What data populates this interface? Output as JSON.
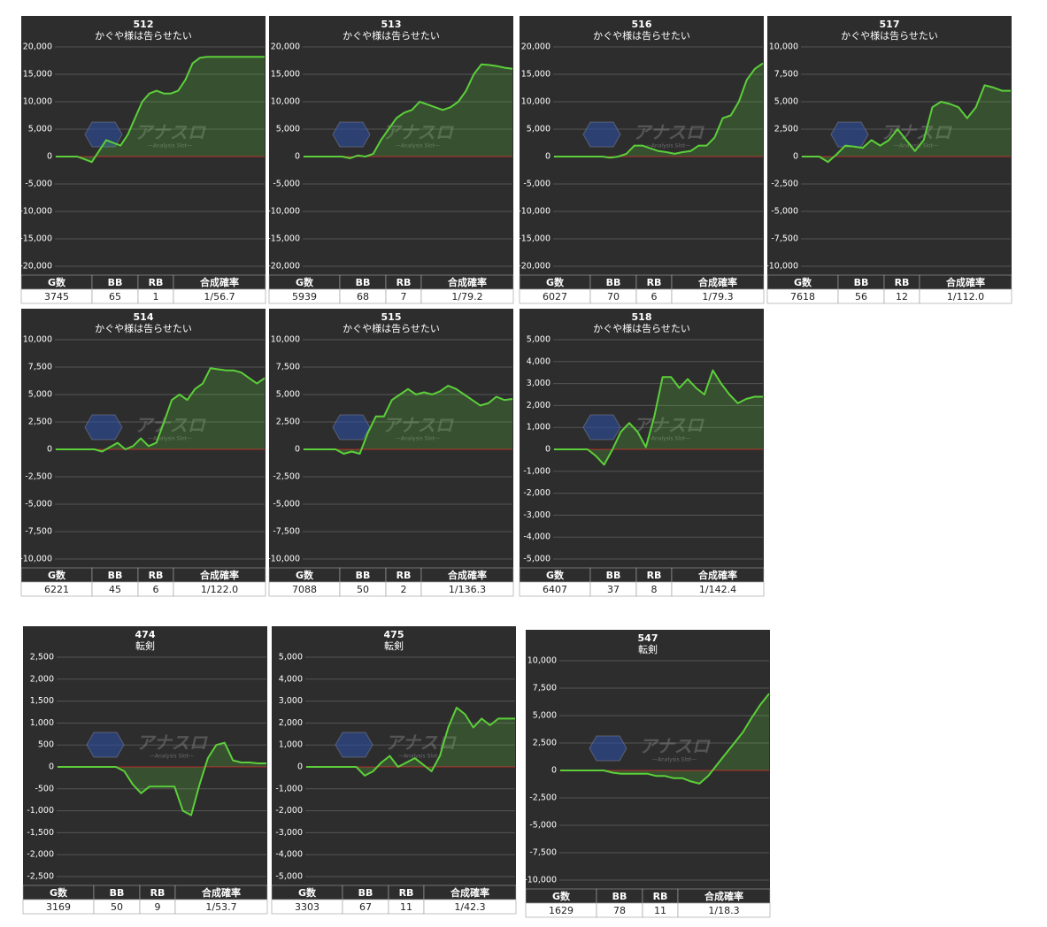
{
  "watermark": {
    "logo": "アナスロ",
    "sub": "—Analysis Slot—"
  },
  "table_columns": [
    "G数",
    "BB",
    "RB",
    "合成確率"
  ],
  "chart_data": [
    {
      "type": "line",
      "title": "512",
      "subtitle": "かぐや様は告らせたい",
      "color": "#5ccf3a",
      "ylim": [
        -20000,
        20000
      ],
      "yticks": [
        {
          "value": 20000,
          "label": "20,000"
        },
        {
          "value": 15000,
          "label": "15,000"
        },
        {
          "value": 10000,
          "label": "10,000"
        },
        {
          "value": 5000,
          "label": "5,000"
        },
        0,
        {
          "value": -5000,
          "label": "-5,000"
        },
        {
          "value": -10000,
          "label": "-10,000"
        },
        {
          "value": -15000,
          "label": "-15,000"
        },
        {
          "value": -20000,
          "label": "-20,000"
        }
      ],
      "values": [
        0,
        0,
        0,
        0,
        -500,
        -1000,
        1000,
        3000,
        2500,
        2000,
        4000,
        7000,
        10000,
        11500,
        12000,
        11500,
        11500,
        12000,
        14000,
        17000,
        18000,
        18200,
        18200,
        18200,
        18200,
        18200,
        18200,
        18200,
        18200,
        18200
      ],
      "table": [
        3745,
        65,
        1,
        "1/56.7"
      ]
    },
    {
      "type": "line",
      "title": "513",
      "subtitle": "かぐや様は告らせたい",
      "color": "#5ccf3a",
      "ylim": [
        -20000,
        20000
      ],
      "yticks": [
        {
          "value": 20000,
          "label": "20,000"
        },
        {
          "value": 15000,
          "label": "15,000"
        },
        {
          "value": 10000,
          "label": "10,000"
        },
        {
          "value": 5000,
          "label": "5,000"
        },
        0,
        {
          "value": -5000,
          "label": "-5,000"
        },
        {
          "value": -10000,
          "label": "-10,000"
        },
        {
          "value": -15000,
          "label": "-15,000"
        },
        {
          "value": -20000,
          "label": "-20,000"
        }
      ],
      "values": [
        0,
        0,
        0,
        0,
        0,
        0,
        -300,
        200,
        0,
        500,
        3000,
        5000,
        7000,
        8000,
        8500,
        10000,
        9500,
        9000,
        8500,
        9000,
        10000,
        12000,
        15000,
        16800,
        16700,
        16500,
        16200,
        16000
      ],
      "table": [
        5939,
        68,
        7,
        "1/79.2"
      ]
    },
    {
      "type": "line",
      "title": "516",
      "subtitle": "かぐや様は告らせたい",
      "color": "#5ccf3a",
      "ylim": [
        -20000,
        20000
      ],
      "yticks": [
        {
          "value": 20000,
          "label": "20,000"
        },
        {
          "value": 15000,
          "label": "15,000"
        },
        {
          "value": 10000,
          "label": "10,000"
        },
        {
          "value": 5000,
          "label": "5,000"
        },
        0,
        {
          "value": -5000,
          "label": "-5,000"
        },
        {
          "value": -10000,
          "label": "-10,000"
        },
        {
          "value": -15000,
          "label": "-15,000"
        },
        {
          "value": -20000,
          "label": "-20,000"
        }
      ],
      "values": [
        0,
        0,
        0,
        0,
        0,
        0,
        0,
        -200,
        0,
        500,
        2000,
        2000,
        1500,
        1000,
        800,
        500,
        800,
        1000,
        2000,
        2000,
        3500,
        7000,
        7500,
        10000,
        14000,
        16000,
        17000
      ],
      "table": [
        6027,
        70,
        6,
        "1/79.3"
      ]
    },
    {
      "type": "line",
      "title": "517",
      "subtitle": "かぐや様は告らせたい",
      "color": "#5ccf3a",
      "ylim": [
        -10000,
        10000
      ],
      "yticks": [
        {
          "value": 10000,
          "label": "10,000"
        },
        {
          "value": 7500,
          "label": "7,500"
        },
        {
          "value": 5000,
          "label": "5,000"
        },
        {
          "value": 2500,
          "label": "2,500"
        },
        0,
        {
          "value": -2500,
          "label": "-2,500"
        },
        {
          "value": -5000,
          "label": "-5,000"
        },
        {
          "value": -7500,
          "label": "-7,500"
        },
        {
          "value": -10000,
          "label": "-10,000"
        }
      ],
      "values": [
        0,
        0,
        0,
        -500,
        200,
        1000,
        900,
        800,
        1500,
        1000,
        1500,
        2500,
        1500,
        500,
        1500,
        4500,
        5000,
        4800,
        4500,
        3500,
        4500,
        6500,
        6300,
        6000,
        6000
      ],
      "table": [
        7618,
        56,
        12,
        "1/112.0"
      ]
    },
    {
      "type": "line",
      "title": "514",
      "subtitle": "かぐや様は告らせたい",
      "color": "#5ccf3a",
      "ylim": [
        -10000,
        10000
      ],
      "yticks": [
        {
          "value": 10000,
          "label": "10,000"
        },
        {
          "value": 7500,
          "label": "7,500"
        },
        {
          "value": 5000,
          "label": "5,000"
        },
        {
          "value": 2500,
          "label": "2,500"
        },
        0,
        {
          "value": -2500,
          "label": "-2,500"
        },
        {
          "value": -5000,
          "label": "-5,000"
        },
        {
          "value": -7500,
          "label": "-7,500"
        },
        {
          "value": -10000,
          "label": "-10,000"
        }
      ],
      "values": [
        0,
        0,
        0,
        0,
        0,
        0,
        -200,
        200,
        600,
        0,
        300,
        1000,
        300,
        600,
        2500,
        4500,
        5000,
        4500,
        5500,
        6000,
        7400,
        7300,
        7200,
        7200,
        7000,
        6500,
        6000,
        6500
      ],
      "table": [
        6221,
        45,
        6,
        "1/122.0"
      ]
    },
    {
      "type": "line",
      "title": "515",
      "subtitle": "かぐや様は告らせたい",
      "color": "#5ccf3a",
      "ylim": [
        -10000,
        10000
      ],
      "yticks": [
        {
          "value": 10000,
          "label": "10,000"
        },
        {
          "value": 7500,
          "label": "7,500"
        },
        {
          "value": 5000,
          "label": "5,000"
        },
        {
          "value": 2500,
          "label": "2,500"
        },
        0,
        {
          "value": -2500,
          "label": "-2,500"
        },
        {
          "value": -5000,
          "label": "-5,000"
        },
        {
          "value": -7500,
          "label": "-7,500"
        },
        {
          "value": -10000,
          "label": "-10,000"
        }
      ],
      "values": [
        0,
        0,
        0,
        0,
        0,
        -400,
        -200,
        -400,
        1500,
        3000,
        3000,
        4500,
        5000,
        5500,
        5000,
        5200,
        5000,
        5300,
        5800,
        5500,
        5000,
        4500,
        4000,
        4200,
        4800,
        4500,
        4600
      ],
      "table": [
        7088,
        50,
        2,
        "1/136.3"
      ]
    },
    {
      "type": "line",
      "title": "518",
      "subtitle": "かぐや様は告らせたい",
      "color": "#5ccf3a",
      "ylim": [
        -5000,
        5000
      ],
      "yticks": [
        {
          "value": 5000,
          "label": "5,000"
        },
        {
          "value": 4000,
          "label": "4,000"
        },
        {
          "value": 3000,
          "label": "3,000"
        },
        {
          "value": 2000,
          "label": "2,000"
        },
        {
          "value": 1000,
          "label": "1,000"
        },
        0,
        {
          "value": -1000,
          "label": "-1,000"
        },
        {
          "value": -2000,
          "label": "-2,000"
        },
        {
          "value": -3000,
          "label": "-3,000"
        },
        {
          "value": -4000,
          "label": "-4,000"
        },
        {
          "value": -5000,
          "label": "-5,000"
        }
      ],
      "values": [
        0,
        0,
        0,
        0,
        0,
        -300,
        -700,
        0,
        800,
        1200,
        800,
        100,
        1500,
        3300,
        3300,
        2800,
        3200,
        2800,
        2500,
        3600,
        3000,
        2500,
        2100,
        2300,
        2400,
        2400
      ],
      "table": [
        6407,
        37,
        8,
        "1/142.4"
      ]
    },
    {
      "type": "line",
      "title": "474",
      "subtitle": "転剣",
      "color": "#5ccf3a",
      "ylim": [
        -2500,
        2500
      ],
      "yticks": [
        {
          "value": 2500,
          "label": "2,500"
        },
        {
          "value": 2000,
          "label": "2,000"
        },
        {
          "value": 1500,
          "label": "1,500"
        },
        {
          "value": 1000,
          "label": "1,000"
        },
        500,
        0,
        -500,
        {
          "value": -1000,
          "label": "-1,000"
        },
        {
          "value": -1500,
          "label": "-1,500"
        },
        {
          "value": -2000,
          "label": "-2,000"
        },
        {
          "value": -2500,
          "label": "-2,500"
        }
      ],
      "values": [
        0,
        0,
        0,
        0,
        0,
        0,
        0,
        0,
        -100,
        -400,
        -600,
        -450,
        -450,
        -450,
        -450,
        -1000,
        -1100,
        -400,
        200,
        500,
        550,
        150,
        100,
        100,
        80,
        80
      ],
      "table": [
        3169,
        50,
        9,
        "1/53.7"
      ]
    },
    {
      "type": "line",
      "title": "475",
      "subtitle": "転剣",
      "color": "#5ccf3a",
      "ylim": [
        -5000,
        5000
      ],
      "yticks": [
        {
          "value": 5000,
          "label": "5,000"
        },
        {
          "value": 4000,
          "label": "4,000"
        },
        {
          "value": 3000,
          "label": "3,000"
        },
        {
          "value": 2000,
          "label": "2,000"
        },
        {
          "value": 1000,
          "label": "1,000"
        },
        0,
        {
          "value": -1000,
          "label": "-1,000"
        },
        {
          "value": -2000,
          "label": "-2,000"
        },
        {
          "value": -3000,
          "label": "-3,000"
        },
        {
          "value": -4000,
          "label": "-4,000"
        },
        {
          "value": -5000,
          "label": "-5,000"
        }
      ],
      "values": [
        0,
        0,
        0,
        0,
        0,
        0,
        0,
        -400,
        -200,
        200,
        500,
        0,
        200,
        400,
        100,
        -200,
        500,
        1800,
        2700,
        2400,
        1800,
        2200,
        1900,
        2200,
        2200,
        2200
      ],
      "table": [
        3303,
        67,
        11,
        "1/42.3"
      ]
    },
    {
      "type": "line",
      "title": "547",
      "subtitle": "転剣",
      "color": "#5ccf3a",
      "ylim": [
        -10000,
        10000
      ],
      "yticks": [
        {
          "value": 10000,
          "label": "10,000"
        },
        {
          "value": 7500,
          "label": "7,500"
        },
        {
          "value": 5000,
          "label": "5,000"
        },
        {
          "value": 2500,
          "label": "2,500"
        },
        0,
        {
          "value": -2500,
          "label": "-2,500"
        },
        {
          "value": -5000,
          "label": "-5,000"
        },
        {
          "value": -7500,
          "label": "-7,500"
        },
        {
          "value": -10000,
          "label": "-10,000"
        }
      ],
      "values": [
        0,
        0,
        0,
        0,
        0,
        0,
        -200,
        -300,
        -300,
        -300,
        -300,
        -500,
        -500,
        -700,
        -700,
        -1000,
        -1200,
        -500,
        500,
        1500,
        2500,
        3500,
        4800,
        6000,
        7000
      ],
      "table": [
        1629,
        78,
        11,
        "1/18.3"
      ]
    }
  ]
}
